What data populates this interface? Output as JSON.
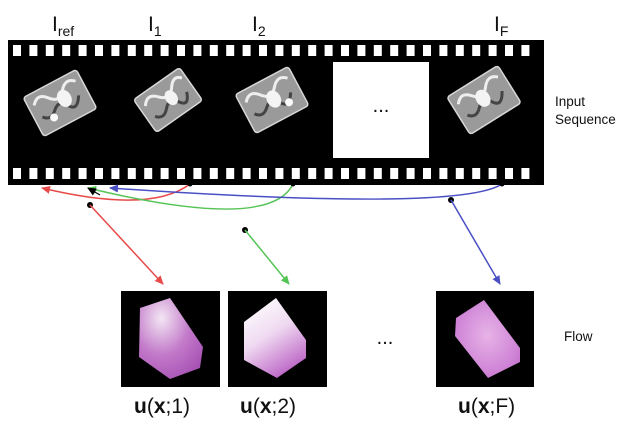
{
  "frames": [
    {
      "label": "I",
      "sub": "ref"
    },
    {
      "label": "I",
      "sub": "1"
    },
    {
      "label": "I",
      "sub": "2"
    },
    {
      "label": "I",
      "sub": "F"
    }
  ],
  "sequence_ellipsis": "...",
  "input_label_line1": "Input",
  "input_label_line2": "Sequence",
  "flow_label": "Flow",
  "flow_ellipsis": "...",
  "flow_captions": [
    {
      "prefix": "u",
      "open": "(",
      "var": "x",
      "index": ";1)"
    },
    {
      "prefix": "u",
      "open": "(",
      "var": "x",
      "index": ";2)"
    },
    {
      "prefix": "u",
      "open": "(",
      "var": "x",
      "index": ";F)"
    }
  ],
  "colors": {
    "flow_1_arrow": "#e84a4a",
    "flow_2_arrow": "#55c455",
    "flow_F_arrow": "#4a4fc4",
    "film": "#000000",
    "flow_field": "#c27ac9"
  }
}
